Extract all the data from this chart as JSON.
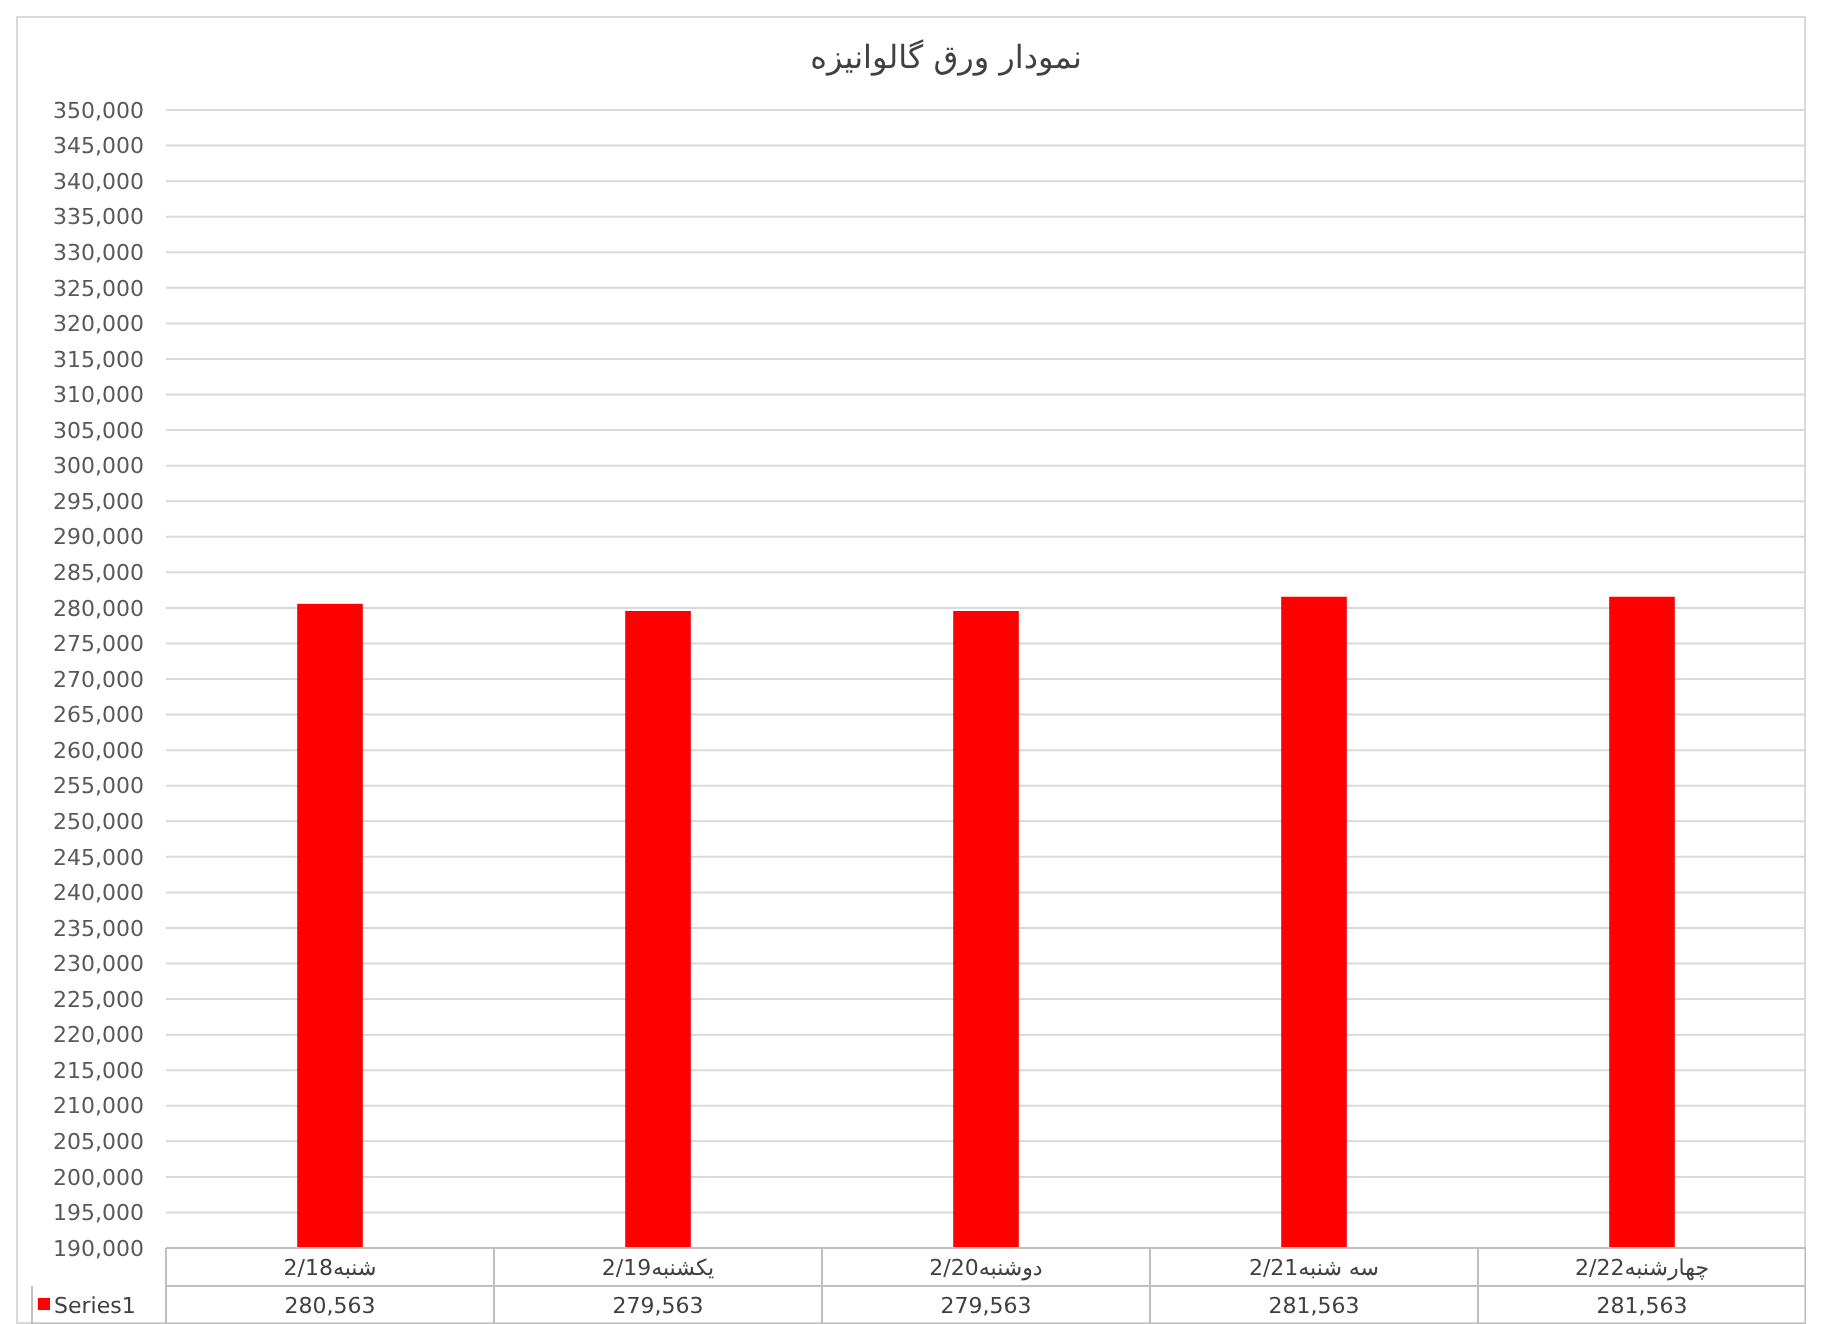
{
  "chart_data": {
    "type": "bar",
    "title": "نمودار ورق گالوانیزه",
    "categories": [
      "شنبه2/18",
      "یکشنبه2/19",
      "دوشنبه2/20",
      "سه شنبه2/21",
      "چهارشنبه2/22"
    ],
    "series": [
      {
        "name": "Series1",
        "color": "#ff0000",
        "values": [
          280563,
          279563,
          279563,
          281563,
          281563
        ],
        "value_labels": [
          "280,563",
          "279,563",
          "279,563",
          "281,563",
          "281,563"
        ]
      }
    ],
    "ylim": [
      190000,
      350000
    ],
    "yticks": [
      {
        "value": 190000,
        "label": "190,000"
      },
      {
        "value": 195000,
        "label": "195,000"
      },
      {
        "value": 200000,
        "label": "200,000"
      },
      {
        "value": 205000,
        "label": "205,000"
      },
      {
        "value": 210000,
        "label": "210,000"
      },
      {
        "value": 215000,
        "label": "215,000"
      },
      {
        "value": 220000,
        "label": "220,000"
      },
      {
        "value": 225000,
        "label": "225,000"
      },
      {
        "value": 230000,
        "label": "230,000"
      },
      {
        "value": 235000,
        "label": "235,000"
      },
      {
        "value": 240000,
        "label": "240,000"
      },
      {
        "value": 245000,
        "label": "245,000"
      },
      {
        "value": 250000,
        "label": "250,000"
      },
      {
        "value": 255000,
        "label": "255,000"
      },
      {
        "value": 260000,
        "label": "260,000"
      },
      {
        "value": 265000,
        "label": "265,000"
      },
      {
        "value": 270000,
        "label": "270,000"
      },
      {
        "value": 275000,
        "label": "275,000"
      },
      {
        "value": 280000,
        "label": "280,000"
      },
      {
        "value": 285000,
        "label": "285,000"
      },
      {
        "value": 290000,
        "label": "290,000"
      },
      {
        "value": 295000,
        "label": "295,000"
      },
      {
        "value": 300000,
        "label": "300,000"
      },
      {
        "value": 305000,
        "label": "305,000"
      },
      {
        "value": 310000,
        "label": "310,000"
      },
      {
        "value": 315000,
        "label": "315,000"
      },
      {
        "value": 320000,
        "label": "320,000"
      },
      {
        "value": 325000,
        "label": "325,000"
      },
      {
        "value": 330000,
        "label": "330,000"
      },
      {
        "value": 335000,
        "label": "335,000"
      },
      {
        "value": 340000,
        "label": "340,000"
      },
      {
        "value": 345000,
        "label": "345,000"
      },
      {
        "value": 350000,
        "label": "350,000"
      }
    ],
    "grid": "y",
    "legend": "bottom"
  }
}
